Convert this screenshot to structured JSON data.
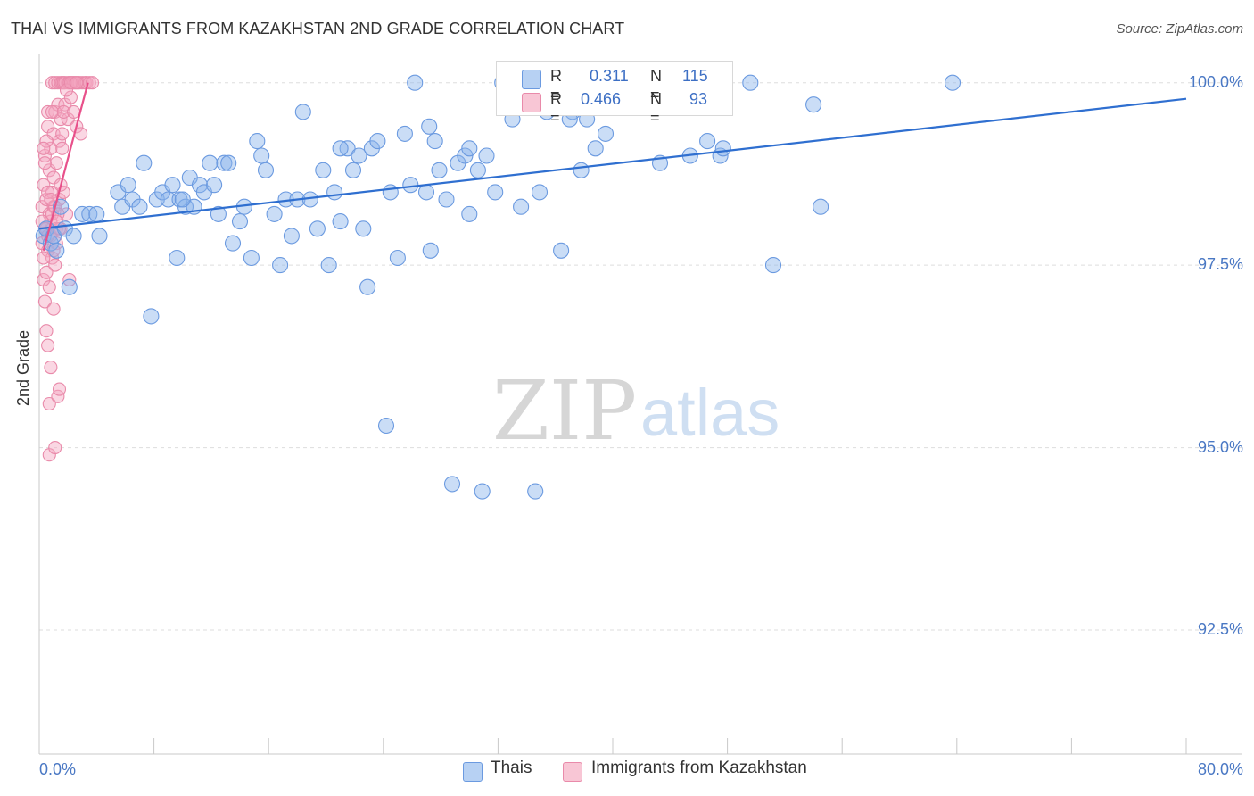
{
  "chart_data": {
    "type": "scatter",
    "title": "THAI VS IMMIGRANTS FROM KAZAKHSTAN 2ND GRADE CORRELATION CHART",
    "source": "Source: ZipAtlas.com",
    "xlabel": "",
    "ylabel": "2nd Grade",
    "xlim": [
      0,
      80
    ],
    "ylim": [
      90.8,
      100.4
    ],
    "x_tick_labels": [
      "0.0%",
      "80.0%"
    ],
    "y_ticks": [
      100.0,
      97.5,
      95.0,
      92.5
    ],
    "y_tick_labels": [
      "100.0%",
      "97.5%",
      "95.0%",
      "92.5%"
    ],
    "watermark": {
      "zip": "ZIP",
      "atlas": "atlas"
    },
    "legend_stats": [
      {
        "r_label": "R =",
        "r_value": "0.311",
        "n_label": "N =",
        "n_value": "115"
      },
      {
        "r_label": "R =",
        "r_value": "0.466",
        "n_label": "N =",
        "n_value": "93"
      }
    ],
    "series": [
      {
        "name": "Thais",
        "color": "#8ab4ec",
        "edge": "#6b9ae0",
        "line_color": "#2f6fd0",
        "trend": {
          "x": [
            0,
            80
          ],
          "y": [
            98.0,
            99.78
          ]
        },
        "points": [
          [
            0.3,
            97.9
          ],
          [
            0.5,
            98.0
          ],
          [
            0.8,
            97.8
          ],
          [
            1.0,
            97.9
          ],
          [
            1.2,
            97.7
          ],
          [
            1.5,
            98.3
          ],
          [
            1.8,
            98.0
          ],
          [
            2.1,
            97.2
          ],
          [
            2.4,
            97.9
          ],
          [
            3.0,
            98.2
          ],
          [
            3.5,
            98.2
          ],
          [
            4.0,
            98.2
          ],
          [
            4.2,
            97.9
          ],
          [
            5.5,
            98.5
          ],
          [
            5.8,
            98.3
          ],
          [
            6.2,
            98.6
          ],
          [
            6.5,
            98.4
          ],
          [
            7.0,
            98.3
          ],
          [
            7.3,
            98.9
          ],
          [
            7.8,
            96.8
          ],
          [
            8.2,
            98.4
          ],
          [
            8.6,
            98.5
          ],
          [
            9.0,
            98.4
          ],
          [
            9.3,
            98.6
          ],
          [
            9.6,
            97.6
          ],
          [
            9.8,
            98.4
          ],
          [
            10.2,
            98.3
          ],
          [
            10.5,
            98.7
          ],
          [
            10.8,
            98.3
          ],
          [
            11.2,
            98.6
          ],
          [
            11.5,
            98.5
          ],
          [
            11.9,
            98.9
          ],
          [
            12.2,
            98.6
          ],
          [
            12.5,
            98.2
          ],
          [
            12.9,
            98.9
          ],
          [
            13.2,
            98.9
          ],
          [
            13.5,
            97.8
          ],
          [
            14.0,
            98.1
          ],
          [
            14.3,
            98.3
          ],
          [
            14.8,
            97.6
          ],
          [
            15.2,
            99.2
          ],
          [
            15.5,
            99.0
          ],
          [
            15.8,
            98.8
          ],
          [
            16.4,
            98.2
          ],
          [
            16.8,
            97.5
          ],
          [
            17.2,
            98.4
          ],
          [
            17.6,
            97.9
          ],
          [
            18.0,
            98.4
          ],
          [
            18.4,
            99.6
          ],
          [
            18.9,
            98.4
          ],
          [
            19.4,
            98.0
          ],
          [
            19.8,
            98.8
          ],
          [
            20.2,
            97.5
          ],
          [
            20.6,
            98.5
          ],
          [
            21.0,
            98.1
          ],
          [
            21.5,
            99.1
          ],
          [
            21.9,
            98.8
          ],
          [
            22.3,
            99.0
          ],
          [
            22.6,
            98.0
          ],
          [
            22.9,
            97.2
          ],
          [
            23.2,
            99.1
          ],
          [
            23.6,
            99.2
          ],
          [
            24.2,
            95.3
          ],
          [
            24.5,
            98.5
          ],
          [
            25.0,
            97.6
          ],
          [
            25.5,
            99.3
          ],
          [
            25.9,
            98.6
          ],
          [
            26.2,
            100.0
          ],
          [
            27.0,
            98.5
          ],
          [
            27.3,
            97.7
          ],
          [
            27.6,
            99.2
          ],
          [
            27.9,
            98.8
          ],
          [
            28.4,
            98.4
          ],
          [
            28.8,
            94.5
          ],
          [
            29.2,
            98.9
          ],
          [
            29.7,
            99.0
          ],
          [
            30.0,
            98.2
          ],
          [
            30.6,
            98.8
          ],
          [
            30.9,
            94.4
          ],
          [
            31.2,
            99.0
          ],
          [
            31.8,
            98.5
          ],
          [
            32.3,
            100.0
          ],
          [
            33.0,
            99.5
          ],
          [
            33.6,
            98.3
          ],
          [
            34.0,
            99.7
          ],
          [
            34.6,
            94.4
          ],
          [
            34.9,
            98.5
          ],
          [
            35.4,
            99.6
          ],
          [
            35.8,
            100.0
          ],
          [
            36.4,
            97.7
          ],
          [
            37.2,
            99.6
          ],
          [
            37.8,
            98.8
          ],
          [
            38.2,
            99.5
          ],
          [
            38.8,
            99.1
          ],
          [
            39.5,
            99.3
          ],
          [
            40.0,
            99.9
          ],
          [
            40.3,
            99.9
          ],
          [
            41.5,
            99.8
          ],
          [
            42.0,
            99.7
          ],
          [
            43.3,
            98.9
          ],
          [
            45.4,
            99.0
          ],
          [
            46.6,
            99.2
          ],
          [
            47.5,
            99.0
          ],
          [
            47.7,
            99.1
          ],
          [
            49.6,
            100.0
          ],
          [
            51.2,
            97.5
          ],
          [
            54.0,
            99.7
          ],
          [
            54.5,
            98.3
          ],
          [
            63.7,
            100.0
          ],
          [
            27.2,
            99.4
          ],
          [
            44.2,
            99.8
          ],
          [
            37.0,
            99.5
          ],
          [
            21.0,
            99.1
          ],
          [
            10.0,
            98.4
          ],
          [
            30.0,
            99.1
          ]
        ]
      },
      {
        "name": "Immigrants from Kazakhstan",
        "color": "#f4a7c0",
        "edge": "#e98aaa",
        "line_color": "#e8508a",
        "trend": {
          "x": [
            0.3,
            3.4
          ],
          "y": [
            97.7,
            100.0
          ]
        },
        "points": [
          [
            0.2,
            97.8
          ],
          [
            0.2,
            98.3
          ],
          [
            0.3,
            98.6
          ],
          [
            0.3,
            97.3
          ],
          [
            0.4,
            99.0
          ],
          [
            0.4,
            97.0
          ],
          [
            0.5,
            98.0
          ],
          [
            0.5,
            98.4
          ],
          [
            0.5,
            96.6
          ],
          [
            0.6,
            99.4
          ],
          [
            0.6,
            99.6
          ],
          [
            0.6,
            97.7
          ],
          [
            0.6,
            96.4
          ],
          [
            0.7,
            98.2
          ],
          [
            0.7,
            98.8
          ],
          [
            0.7,
            95.6
          ],
          [
            0.7,
            94.9
          ],
          [
            0.8,
            99.1
          ],
          [
            0.8,
            98.1
          ],
          [
            0.8,
            96.1
          ],
          [
            0.9,
            98.5
          ],
          [
            0.9,
            97.6
          ],
          [
            0.9,
            100.0
          ],
          [
            1.0,
            99.3
          ],
          [
            1.0,
            98.3
          ],
          [
            1.0,
            96.9
          ],
          [
            1.1,
            100.0
          ],
          [
            1.1,
            99.6
          ],
          [
            1.1,
            97.5
          ],
          [
            1.1,
            95.0
          ],
          [
            1.2,
            98.9
          ],
          [
            1.2,
            98.0
          ],
          [
            1.3,
            100.0
          ],
          [
            1.3,
            99.7
          ],
          [
            1.3,
            95.7
          ],
          [
            1.4,
            98.4
          ],
          [
            1.4,
            99.2
          ],
          [
            1.4,
            95.8
          ],
          [
            1.5,
            100.0
          ],
          [
            1.5,
            99.5
          ],
          [
            1.5,
            98.0
          ],
          [
            1.6,
            100.0
          ],
          [
            1.6,
            99.1
          ],
          [
            1.7,
            100.0
          ],
          [
            1.7,
            98.5
          ],
          [
            1.8,
            100.0
          ],
          [
            1.8,
            99.7
          ],
          [
            1.9,
            98.2
          ],
          [
            2.0,
            100.0
          ],
          [
            2.0,
            99.5
          ],
          [
            2.1,
            100.0
          ],
          [
            2.1,
            97.3
          ],
          [
            2.2,
            99.8
          ],
          [
            2.3,
            100.0
          ],
          [
            2.4,
            100.0
          ],
          [
            2.5,
            100.0
          ],
          [
            2.6,
            99.4
          ],
          [
            2.7,
            100.0
          ],
          [
            2.8,
            100.0
          ],
          [
            2.9,
            99.3
          ],
          [
            3.0,
            100.0
          ],
          [
            3.2,
            100.0
          ],
          [
            3.3,
            100.0
          ],
          [
            3.5,
            100.0
          ],
          [
            3.7,
            100.0
          ],
          [
            0.2,
            98.1
          ],
          [
            0.3,
            97.6
          ],
          [
            0.4,
            98.9
          ],
          [
            0.5,
            99.2
          ],
          [
            0.6,
            98.5
          ],
          [
            0.8,
            97.9
          ],
          [
            0.9,
            99.6
          ],
          [
            1.0,
            98.7
          ],
          [
            1.2,
            97.8
          ],
          [
            1.4,
            98.0
          ],
          [
            1.6,
            99.3
          ],
          [
            0.3,
            99.1
          ],
          [
            0.5,
            97.4
          ],
          [
            0.7,
            97.2
          ],
          [
            0.9,
            98.2
          ],
          [
            1.1,
            98.3
          ],
          [
            1.3,
            98.2
          ],
          [
            1.5,
            98.6
          ],
          [
            1.7,
            99.6
          ],
          [
            1.9,
            99.9
          ],
          [
            2.2,
            100.0
          ],
          [
            2.6,
            100.0
          ],
          [
            0.4,
            98.0
          ],
          [
            0.6,
            97.9
          ],
          [
            0.8,
            98.4
          ],
          [
            1.0,
            97.7
          ],
          [
            1.2,
            98.1
          ],
          [
            2.4,
            99.6
          ]
        ]
      }
    ]
  }
}
